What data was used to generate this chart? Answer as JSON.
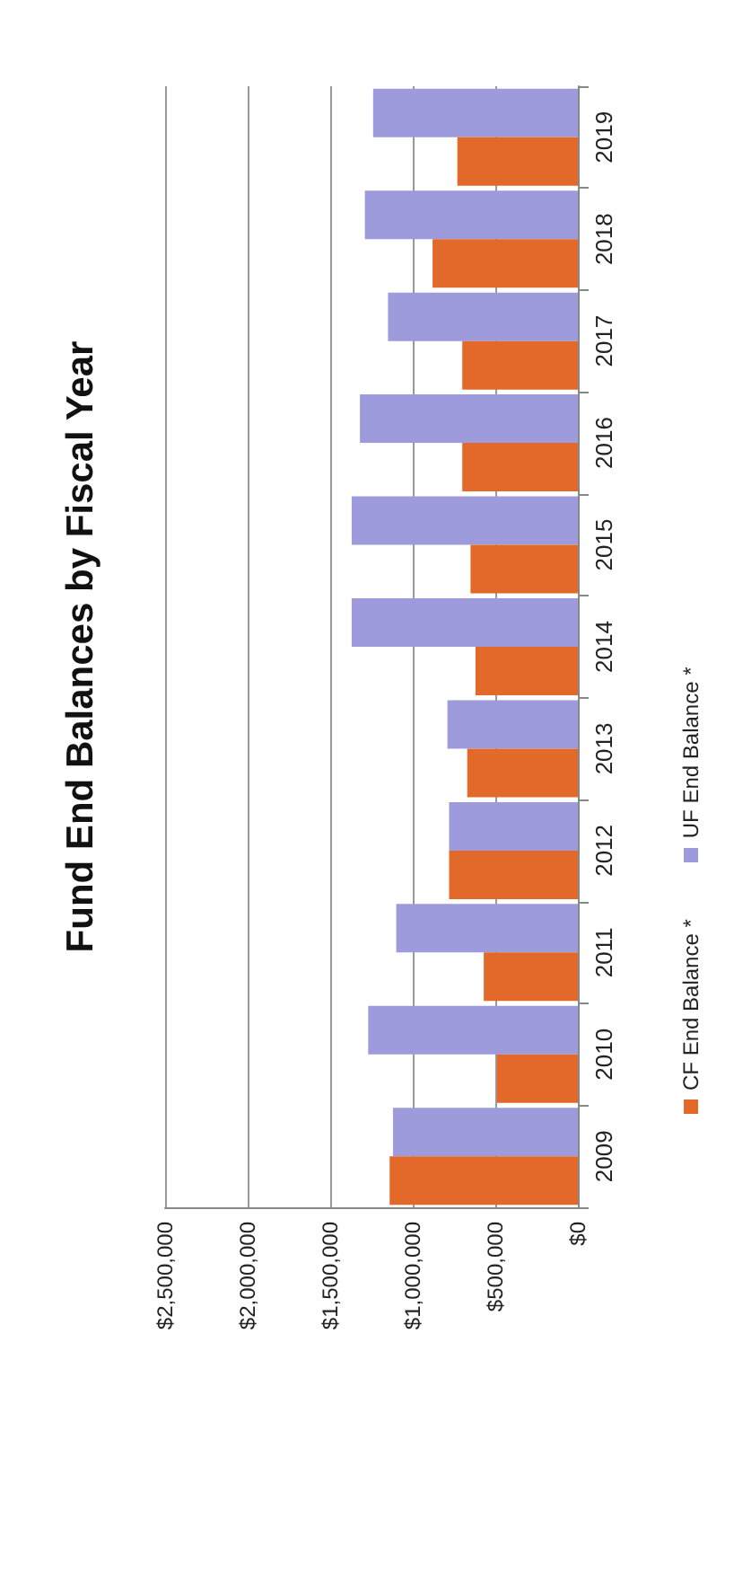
{
  "chart_data": {
    "type": "bar",
    "orientation": "horizontal",
    "title": "Fund End Balances by Fiscal Year",
    "categories": [
      "2019",
      "2018",
      "2017",
      "2016",
      "2015",
      "2014",
      "2013",
      "2012",
      "2011",
      "2010",
      "2009"
    ],
    "series": [
      {
        "name": "CF End Balance *",
        "color": "#e2692a",
        "values": [
          730000,
          880000,
          700000,
          700000,
          650000,
          620000,
          670000,
          780000,
          570000,
          490000,
          1140000
        ]
      },
      {
        "name": "UF End Balance *",
        "color": "#9d9bdb",
        "values": [
          1240000,
          1290000,
          1150000,
          1320000,
          1370000,
          1370000,
          790000,
          780000,
          1100000,
          1270000,
          1120000
        ]
      }
    ],
    "xlim": [
      2500000,
      0
    ],
    "xticks": [
      {
        "value": 0,
        "label": "$0"
      },
      {
        "value": 500000,
        "label": "$500,000"
      },
      {
        "value": 1000000,
        "label": "$1,000,000"
      },
      {
        "value": 1500000,
        "label": "$1,500,000"
      },
      {
        "value": 2000000,
        "label": "$2,000,000"
      },
      {
        "value": 2500000,
        "label": "$2,500,000"
      }
    ],
    "grid": "x",
    "legend": "right"
  }
}
